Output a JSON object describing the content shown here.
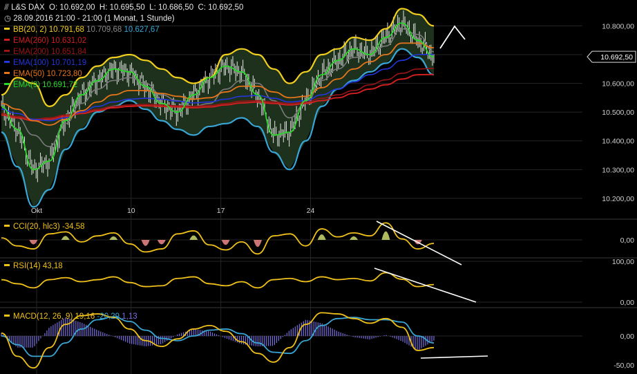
{
  "instrument": {
    "name": "L&S DAX",
    "open": "O: 10.692,00",
    "high": "H: 10.695,50",
    "low": "L: 10.686,50",
    "close": "C: 10.692,50",
    "range": "28.09.2016 21:00 - 21:00 (1 Monat, 1 Stunde)"
  },
  "colors": {
    "bg": "#000000",
    "grid": "#262626",
    "divider": "#3a3a3a",
    "bb": "#f2cf1e",
    "bb_mid": "#7a7a7a",
    "bb_low": "#39a6d6",
    "bb_fill": "#1d311d",
    "ema260": "#d01f1f",
    "ema200": "#9b1515",
    "ema100": "#2436dc",
    "ema50": "#e7751b",
    "ema9": "#2bd62b",
    "price_label_bg": "#dcdcdc",
    "cci": "#f0c11a",
    "macd_hist": "#7a6fe0",
    "macd_signal": "#39a6d6",
    "trendline": "#ffffff",
    "pos_fill": "#ccd870",
    "neg_fill": "#f08a8a"
  },
  "legend": [
    {
      "label": "BB(20, 2)",
      "values": [
        "10.791,68",
        "10.709,68",
        "10.627,67"
      ],
      "colors": [
        "#f2cf1e",
        "#8a8a8a",
        "#39a6d6"
      ],
      "swatch": "#f2cf1e"
    },
    {
      "label": "EMA(260)",
      "values": [
        "10.631,02"
      ],
      "colors": [
        "#d01f1f"
      ],
      "swatch": "#d01f1f"
    },
    {
      "label": "EMA(200)",
      "values": [
        "10.651,84"
      ],
      "colors": [
        "#9b1515"
      ],
      "swatch": "#9b1515"
    },
    {
      "label": "EMA(100)",
      "values": [
        "10.701,19"
      ],
      "colors": [
        "#2436dc"
      ],
      "swatch": "#2436dc"
    },
    {
      "label": "EMA(50)",
      "values": [
        "10.723,80"
      ],
      "colors": [
        "#e7751b"
      ],
      "swatch": "#e7751b"
    },
    {
      "label": "EMA(9)",
      "values": [
        "10.691,72"
      ],
      "colors": [
        "#2bd62b"
      ],
      "swatch": "#2bd62b"
    }
  ],
  "current_price_label": "10.692,50",
  "chart_data": [
    {
      "type": "line",
      "panel": "price",
      "title": "L&S DAX",
      "x_ticks": [
        "Okt",
        "10",
        "17",
        "24"
      ],
      "y_ticks": [
        "10.800,00",
        "10.700,00",
        "10.600,00",
        "10.500,00",
        "10.400,00",
        "10.300,00",
        "10.200,00"
      ],
      "ylim": [
        10130,
        10890
      ],
      "grid": true,
      "series": [
        {
          "name": "BB(20, 2) upper",
          "values": [
            10560,
            10620,
            10600,
            10520,
            10560,
            10620,
            10660,
            10690,
            10700,
            10680,
            10650,
            10620,
            10600,
            10620,
            10700,
            10720,
            10700,
            10650,
            10600,
            10640,
            10700,
            10720,
            10760,
            10750,
            10790,
            10860,
            10840,
            10800
          ]
        },
        {
          "name": "BB(20, 2) middle",
          "values": [
            10490,
            10480,
            10420,
            10380,
            10460,
            10530,
            10580,
            10610,
            10620,
            10600,
            10560,
            10540,
            10520,
            10530,
            10580,
            10610,
            10600,
            10540,
            10480,
            10530,
            10610,
            10650,
            10690,
            10700,
            10730,
            10790,
            10770,
            10710
          ]
        },
        {
          "name": "BB(20, 2) lower",
          "values": [
            10430,
            10310,
            10170,
            10230,
            10370,
            10440,
            10500,
            10520,
            10540,
            10510,
            10470,
            10440,
            10420,
            10450,
            10460,
            10480,
            10450,
            10360,
            10300,
            10400,
            10520,
            10580,
            10610,
            10640,
            10670,
            10720,
            10690,
            10630
          ]
        },
        {
          "name": "EMA(260)",
          "values": [
            10490,
            10480,
            10470,
            10475,
            10485,
            10495,
            10505,
            10515,
            10520,
            10522,
            10520,
            10518,
            10515,
            10518,
            10525,
            10532,
            10535,
            10530,
            10525,
            10530,
            10540,
            10550,
            10565,
            10580,
            10595,
            10615,
            10630,
            10631
          ]
        },
        {
          "name": "EMA(200)",
          "values": [
            10495,
            10485,
            10475,
            10480,
            10490,
            10500,
            10510,
            10520,
            10525,
            10527,
            10525,
            10522,
            10520,
            10523,
            10530,
            10538,
            10540,
            10535,
            10530,
            10535,
            10548,
            10560,
            10575,
            10595,
            10612,
            10635,
            10650,
            10652
          ]
        },
        {
          "name": "EMA(100)",
          "values": [
            10510,
            10495,
            10475,
            10470,
            10480,
            10500,
            10520,
            10535,
            10545,
            10548,
            10545,
            10538,
            10532,
            10535,
            10545,
            10555,
            10558,
            10548,
            10535,
            10540,
            10560,
            10580,
            10605,
            10630,
            10650,
            10680,
            10700,
            10701
          ]
        },
        {
          "name": "EMA(50)",
          "values": [
            10530,
            10510,
            10470,
            10455,
            10475,
            10505,
            10535,
            10560,
            10575,
            10575,
            10565,
            10555,
            10545,
            10550,
            10570,
            10590,
            10590,
            10570,
            10550,
            10555,
            10585,
            10615,
            10650,
            10675,
            10700,
            10740,
            10740,
            10724
          ]
        },
        {
          "name": "EMA(9)",
          "values": [
            10520,
            10440,
            10300,
            10330,
            10470,
            10560,
            10610,
            10650,
            10640,
            10590,
            10530,
            10500,
            10560,
            10620,
            10660,
            10640,
            10560,
            10420,
            10430,
            10540,
            10630,
            10680,
            10720,
            10700,
            10760,
            10810,
            10750,
            10692
          ]
        }
      ]
    },
    {
      "type": "line",
      "panel": "CCI",
      "title": "CCI(20, hlc3)",
      "last_value": "-34,58",
      "y_ticks": [
        "0,00"
      ],
      "series": [
        {
          "name": "CCI(20, hlc3)",
          "values": [
            20,
            -60,
            -90,
            60,
            80,
            -20,
            40,
            70,
            -40,
            -120,
            -90,
            60,
            90,
            -50,
            -100,
            -20,
            -140,
            40,
            60,
            -60,
            110,
            30,
            70,
            40,
            170,
            10,
            -90,
            -35
          ]
        }
      ]
    },
    {
      "type": "line",
      "panel": "RSI",
      "title": "RSI(14)",
      "last_value": "43,18",
      "y_ticks": [
        "100,00",
        "0,00"
      ],
      "ylim": [
        0,
        100
      ],
      "series": [
        {
          "name": "RSI(14)",
          "values": [
            55,
            45,
            35,
            55,
            60,
            50,
            55,
            62,
            48,
            38,
            40,
            58,
            62,
            45,
            40,
            50,
            35,
            55,
            58,
            50,
            62,
            55,
            58,
            52,
            72,
            56,
            38,
            43
          ]
        }
      ]
    },
    {
      "type": "bar",
      "panel": "MACD",
      "title": "MACD(12, 26, 9)",
      "legend_values": [
        "19,16",
        "-20,29",
        "1,13"
      ],
      "y_ticks": [
        "0,00",
        "-50,00"
      ],
      "series": [
        {
          "name": "MACD",
          "values": [
            5,
            -35,
            -55,
            -20,
            20,
            35,
            38,
            32,
            12,
            -8,
            -18,
            -5,
            12,
            18,
            8,
            -10,
            -30,
            -45,
            -20,
            20,
            40,
            38,
            30,
            22,
            30,
            15,
            -25,
            -20
          ]
        },
        {
          "name": "Signal",
          "values": [
            0,
            -15,
            -35,
            -35,
            -12,
            12,
            28,
            33,
            25,
            10,
            -4,
            -8,
            0,
            10,
            12,
            4,
            -12,
            -28,
            -30,
            -8,
            18,
            30,
            32,
            28,
            28,
            24,
            0,
            -12
          ]
        }
      ]
    }
  ],
  "axis_labels": {
    "price": [
      "10.800,00",
      "10.700,00",
      "10.600,00",
      "10.500,00",
      "10.400,00",
      "10.300,00",
      "10.200,00"
    ],
    "cci": "0,00",
    "rsi_top": "100,00",
    "rsi_bottom": "0,00",
    "macd_zero": "0,00",
    "macd_low": "-50,00",
    "x": [
      "Okt",
      "10",
      "17",
      "24"
    ]
  }
}
